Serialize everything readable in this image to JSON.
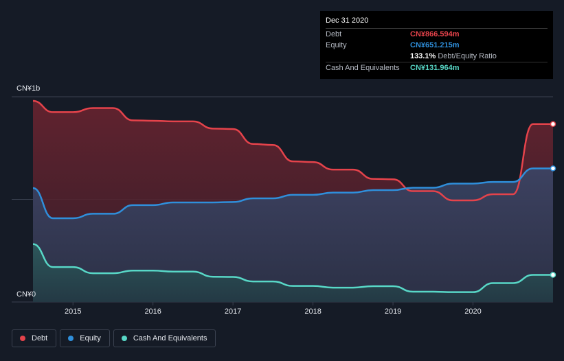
{
  "tooltip": {
    "date": "Dec 31 2020",
    "rows": [
      {
        "label": "Debt",
        "value": "CN¥866.594m",
        "color": "#e5434b"
      },
      {
        "label": "Equity",
        "value": "CN¥651.215m",
        "color": "#2f8fdb"
      },
      {
        "label": "",
        "value": "133.1%",
        "sub": "Debt/Equity Ratio",
        "color": "#ffffff"
      },
      {
        "label": "Cash And Equivalents",
        "value": "CN¥131.964m",
        "color": "#58d8c7"
      }
    ]
  },
  "legend": [
    {
      "label": "Debt",
      "color": "#e5434b"
    },
    {
      "label": "Equity",
      "color": "#2f8fdb"
    },
    {
      "label": "Cash And Equivalents",
      "color": "#58d8c7"
    }
  ],
  "chart_data": {
    "type": "area",
    "y_top_label": "CN¥1b",
    "y_bottom_label": "CN¥0",
    "ylim": [
      0,
      1000
    ],
    "xlim": [
      2014.5,
      2021.0
    ],
    "x_ticks": [
      2015,
      2016,
      2017,
      2018,
      2019,
      2020
    ],
    "x_tick_labels": [
      "2015",
      "2016",
      "2017",
      "2018",
      "2019",
      "2020"
    ],
    "series": [
      {
        "name": "Debt",
        "color": "#e5434b",
        "x": [
          2014.5,
          2014.75,
          2015.0,
          2015.25,
          2015.5,
          2015.75,
          2016.0,
          2016.25,
          2016.5,
          2016.75,
          2017.0,
          2017.25,
          2017.5,
          2017.75,
          2018.0,
          2018.25,
          2018.5,
          2018.75,
          2019.0,
          2019.25,
          2019.5,
          2019.75,
          2020.0,
          2020.25,
          2020.5,
          2020.75,
          2021.0
        ],
        "values": [
          980,
          925,
          925,
          945,
          945,
          885,
          883,
          880,
          880,
          845,
          843,
          770,
          765,
          685,
          682,
          645,
          645,
          600,
          598,
          540,
          540,
          495,
          495,
          525,
          525,
          867,
          867
        ]
      },
      {
        "name": "Equity",
        "color": "#2f8fdb",
        "x": [
          2014.5,
          2014.75,
          2015.0,
          2015.25,
          2015.5,
          2015.75,
          2016.0,
          2016.25,
          2016.5,
          2016.75,
          2017.0,
          2017.25,
          2017.5,
          2017.75,
          2018.0,
          2018.25,
          2018.5,
          2018.75,
          2019.0,
          2019.25,
          2019.5,
          2019.75,
          2020.0,
          2020.25,
          2020.5,
          2020.75,
          2021.0
        ],
        "values": [
          555,
          408,
          408,
          430,
          430,
          472,
          472,
          485,
          485,
          485,
          487,
          505,
          505,
          522,
          522,
          533,
          533,
          545,
          545,
          557,
          557,
          577,
          577,
          585,
          585,
          651,
          651
        ]
      },
      {
        "name": "Cash And Equivalents",
        "color": "#58d8c7",
        "x": [
          2014.5,
          2014.75,
          2015.0,
          2015.25,
          2015.5,
          2015.75,
          2016.0,
          2016.25,
          2016.5,
          2016.75,
          2017.0,
          2017.25,
          2017.5,
          2017.75,
          2018.0,
          2018.25,
          2018.5,
          2018.75,
          2019.0,
          2019.25,
          2019.5,
          2019.75,
          2020.0,
          2020.25,
          2020.5,
          2020.75,
          2021.0
        ],
        "values": [
          282,
          170,
          170,
          140,
          140,
          153,
          153,
          148,
          148,
          123,
          122,
          100,
          100,
          78,
          78,
          70,
          70,
          77,
          77,
          50,
          50,
          48,
          48,
          92,
          92,
          132,
          132
        ]
      }
    ]
  }
}
